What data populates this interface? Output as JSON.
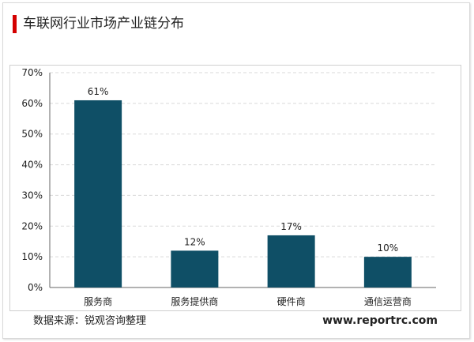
{
  "title": "车联网行业市场产业链分布",
  "source": "数据来源：锐观咨询整理",
  "site": "www.reportrc.com",
  "colors": {
    "accent": "#d40000",
    "bar": "#0f4f66",
    "grid": "#d9d9d9"
  },
  "chart_data": {
    "type": "bar",
    "categories": [
      "服务商",
      "服务提供商",
      "硬件商",
      "通信运营商"
    ],
    "values": [
      61,
      12,
      17,
      10
    ],
    "data_labels": [
      "61%",
      "12%",
      "17%",
      "10%"
    ],
    "ylim": [
      0,
      70
    ],
    "yticks": [
      "0%",
      "10%",
      "20%",
      "30%",
      "40%",
      "50%",
      "60%",
      "70%"
    ],
    "grid": true,
    "legend": "none"
  }
}
